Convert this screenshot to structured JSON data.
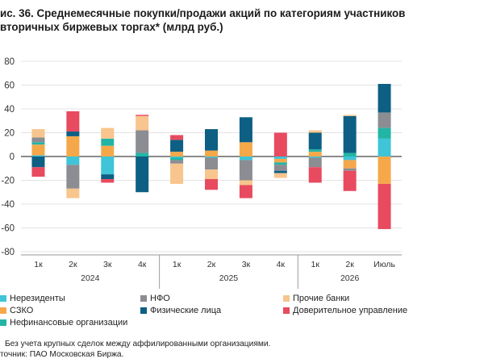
{
  "header": {
    "title_line1": "ис. 36. Среднемесячные покупки/продажи акций по категориям участников",
    "title_line2": "вторичных биржевых торгах* (млрд руб.)"
  },
  "footnotes": {
    "note": "Без учета крупных сделок между аффилированными организациями.",
    "source": "точник: ПАО Московская Биржа."
  },
  "chart_data": {
    "type": "bar",
    "stacked": true,
    "ylim": [
      -80,
      80
    ],
    "yticks": [
      "80",
      "60",
      "40",
      "20",
      "0",
      "-20",
      "-40",
      "-60",
      "-80"
    ],
    "categories": [
      "1к",
      "2к",
      "3к",
      "4к",
      "1к",
      "2к",
      "3к",
      "4к",
      "1к",
      "2к",
      "Июль"
    ],
    "groups": [
      {
        "label": "2024",
        "count": 4
      },
      {
        "label": "2025",
        "count": 4
      },
      {
        "label": "2026",
        "count": 3
      }
    ],
    "grid": true,
    "legend_position": "bottom",
    "series": [
      {
        "name": "Нерезиденты",
        "color": "#3fc4d8",
        "values": [
          1,
          -7,
          -15,
          0,
          -1,
          -1,
          -3,
          -2,
          -1,
          -3,
          15
        ]
      },
      {
        "name": "СЗКО",
        "color": "#f5a84a",
        "values": [
          9,
          17,
          9,
          0,
          4,
          5,
          12,
          -3,
          4,
          -7,
          -23
        ]
      },
      {
        "name": "Нефинансовые организации",
        "color": "#22b5a5",
        "values": [
          2,
          0,
          6,
          3,
          -2,
          0,
          0,
          -2,
          2,
          3,
          9
        ]
      },
      {
        "name": "НФО",
        "color": "#8b8d92",
        "values": [
          4,
          -20,
          0,
          19,
          -3,
          -10,
          -17,
          -5,
          -8,
          -2,
          13
        ]
      },
      {
        "name": "Физические лица",
        "color": "#0d5f84",
        "values": [
          -9,
          4,
          -4,
          -30,
          10,
          18,
          21,
          -2,
          14,
          31,
          24
        ]
      },
      {
        "name": "Прочие банки",
        "color": "#f7c58d",
        "values": [
          7,
          -8,
          9,
          12,
          -17,
          -8,
          -4,
          -4,
          2,
          1,
          0
        ]
      },
      {
        "name": "Доверительное управление",
        "color": "#e84a5f",
        "values": [
          -8,
          17,
          -3,
          1,
          4,
          -9,
          -11,
          20,
          -13,
          -17,
          -38
        ]
      }
    ]
  },
  "legend": [
    {
      "label": "Нерезиденты",
      "color": "#3fc4d8"
    },
    {
      "label": "НФО",
      "color": "#8b8d92"
    },
    {
      "label": "Прочие банки",
      "color": "#f7c58d"
    },
    {
      "label": "СЗКО",
      "color": "#f5a84a"
    },
    {
      "label": "Физические лица",
      "color": "#0d5f84"
    },
    {
      "label": "Доверительное управление",
      "color": "#e84a5f"
    },
    {
      "label": "Нефинансовые организации",
      "color": "#22b5a5"
    }
  ]
}
